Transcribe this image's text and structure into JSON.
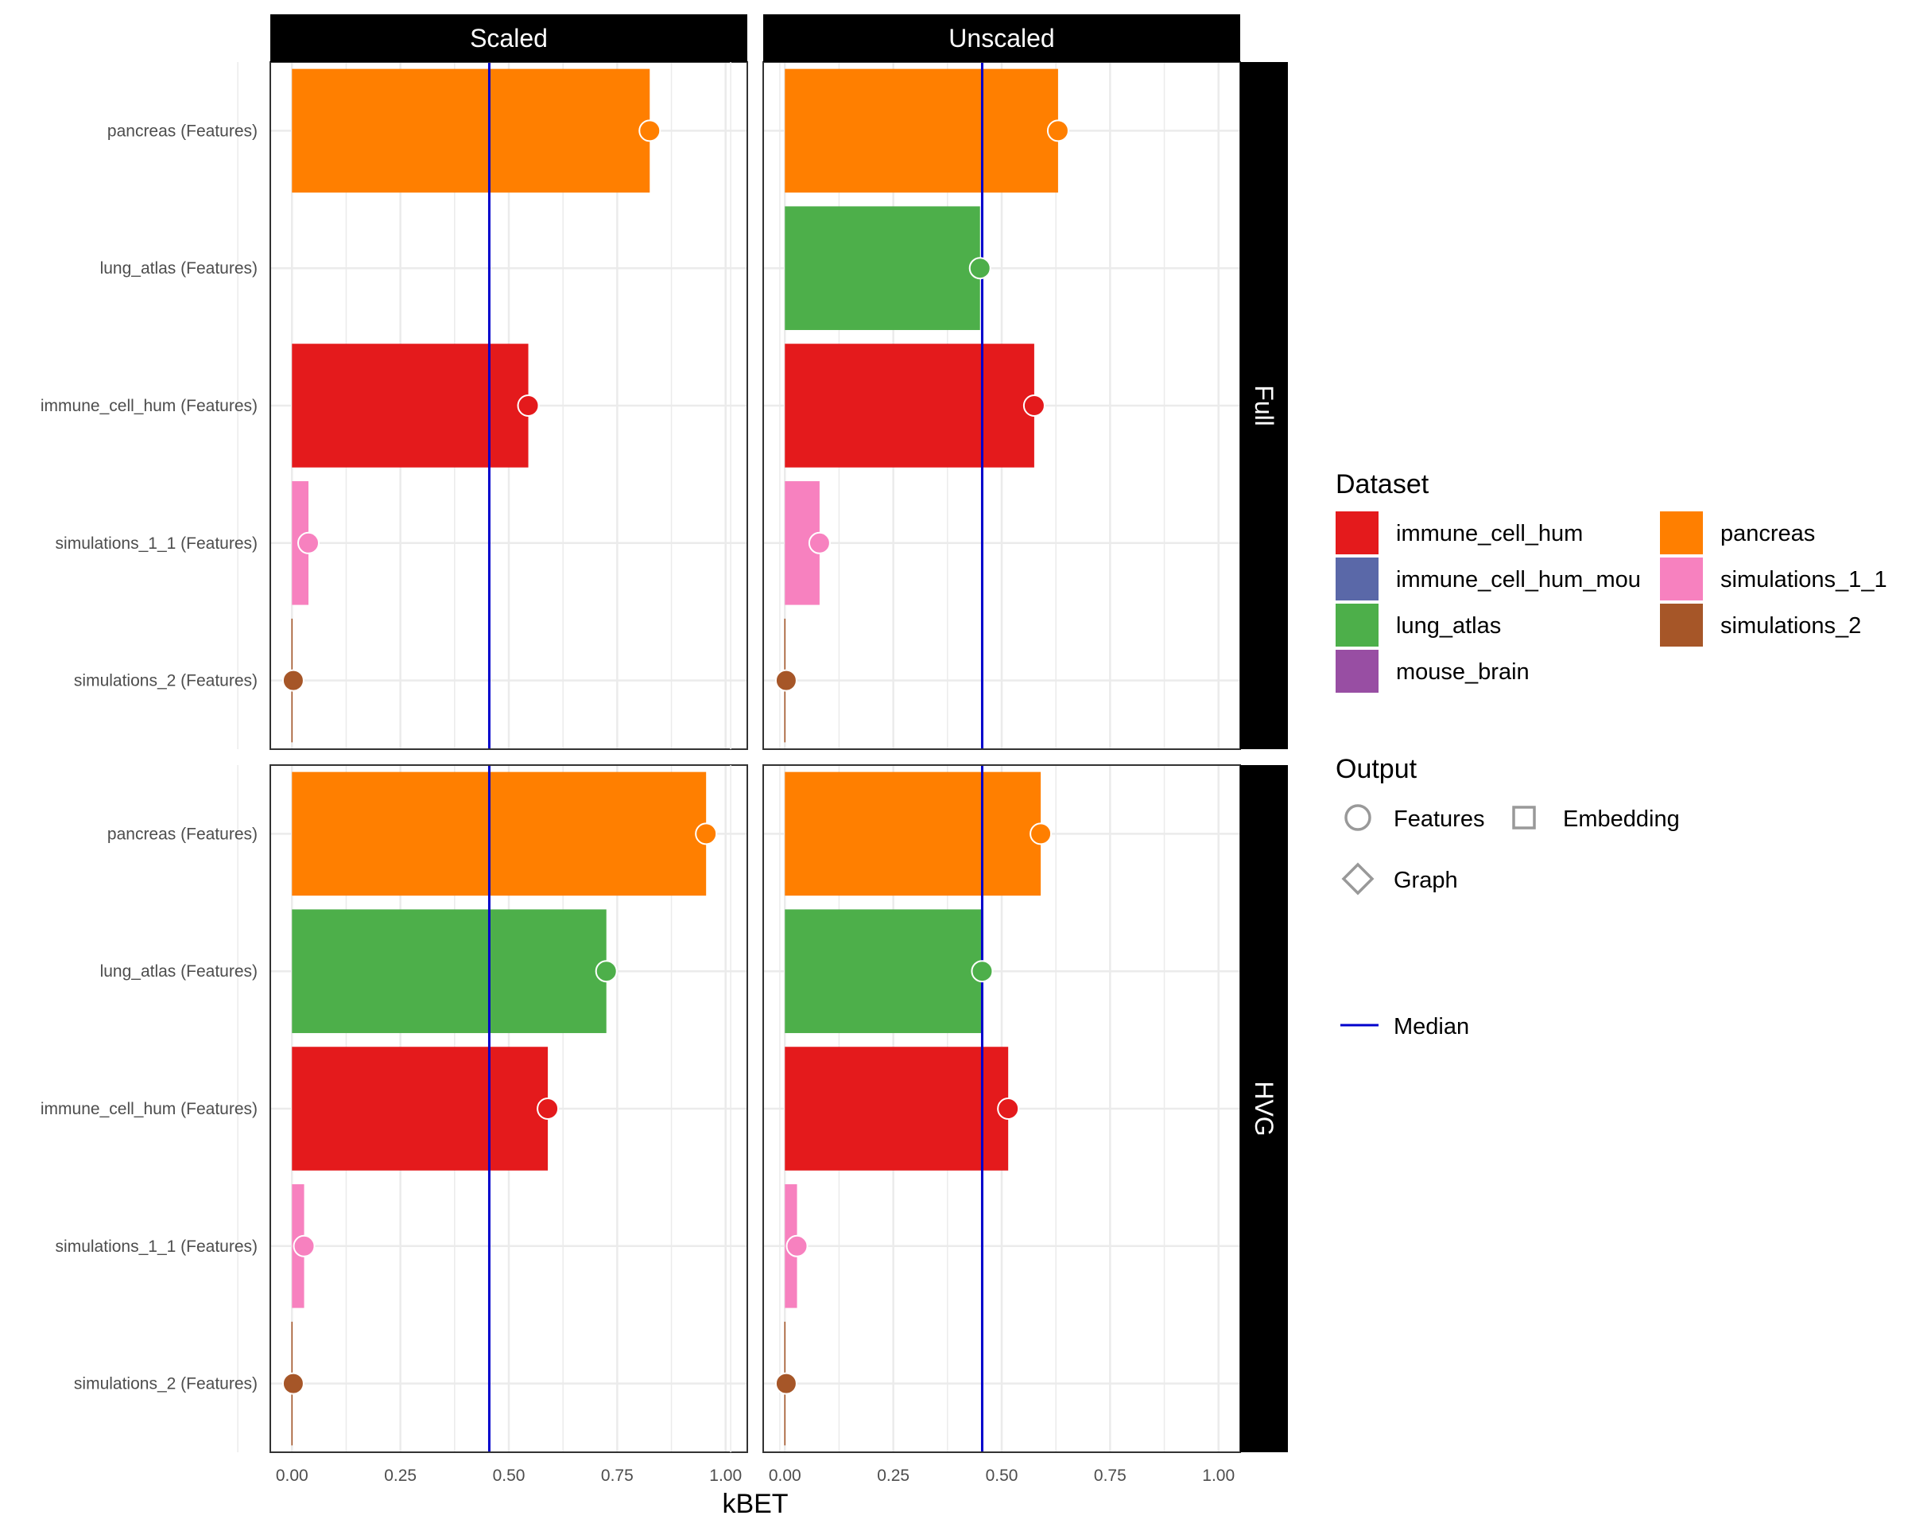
{
  "chart_data": {
    "type": "bar",
    "xlabel": "kBET",
    "ylabel": "",
    "xlim": [
      -0.05,
      1.05
    ],
    "x_ticks": [
      "0.00",
      "0.25",
      "0.50",
      "0.75",
      "1.00"
    ],
    "x_tick_values": [
      0,
      0.25,
      0.5,
      0.75,
      1.0
    ],
    "categories": [
      "pancreas (Features)",
      "lung_atlas (Features)",
      "immune_cell_hum (Features)",
      "simulations_1_1 (Features)",
      "simulations_2 (Features)"
    ],
    "category_colors": [
      "#FF7F00",
      "#4DAF4A",
      "#E41A1C",
      "#F781BF",
      "#A65628"
    ],
    "column_facets": [
      "Scaled",
      "Unscaled"
    ],
    "row_facets": [
      "Full",
      "HVG"
    ],
    "grid": true,
    "median_color": "#0000CC",
    "panels": [
      {
        "column": "Scaled",
        "row": "Full",
        "values": [
          0.825,
          null,
          0.545,
          0.038,
          0.003
        ],
        "median": 0.455
      },
      {
        "column": "Unscaled",
        "row": "Full",
        "values": [
          0.63,
          0.45,
          0.575,
          0.08,
          0.003
        ],
        "median": 0.455
      },
      {
        "column": "Scaled",
        "row": "HVG",
        "values": [
          0.955,
          0.725,
          0.59,
          0.028,
          0.003
        ],
        "median": 0.455
      },
      {
        "column": "Unscaled",
        "row": "HVG",
        "values": [
          0.59,
          0.455,
          0.515,
          0.028,
          0.003
        ],
        "median": 0.455
      }
    ],
    "legend": {
      "placement": "right",
      "dataset_title": "Dataset",
      "dataset_entries": [
        {
          "label": "immune_cell_hum",
          "color": "#E41A1C"
        },
        {
          "label": "immune_cell_hum_mou",
          "color": "#5A68A8"
        },
        {
          "label": "lung_atlas",
          "color": "#4DAF4A"
        },
        {
          "label": "mouse_brain",
          "color": "#984EA3"
        },
        {
          "label": "pancreas",
          "color": "#FF7F00"
        },
        {
          "label": "simulations_1_1",
          "color": "#F781BF"
        },
        {
          "label": "simulations_2",
          "color": "#A65628"
        }
      ],
      "output_title": "Output",
      "output_entries": [
        {
          "label": "Features",
          "shape": "circle"
        },
        {
          "label": "Embedding",
          "shape": "square"
        },
        {
          "label": "Graph",
          "shape": "diamond"
        }
      ],
      "median_label": "Median"
    }
  }
}
